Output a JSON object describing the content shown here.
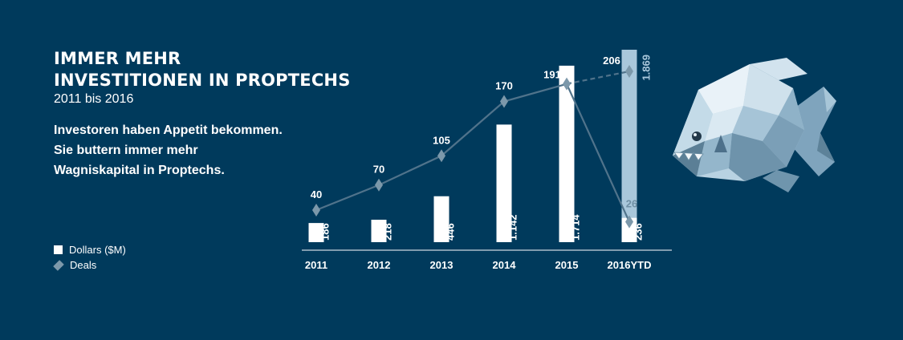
{
  "header": {
    "title_line1": "IMMER MEHR",
    "title_line2": "INVESTITIONEN IN PROPTECHS",
    "subtitle": "2011 bis 2016",
    "description": "Investoren haben Appetit bekommen. Sie buttern immer mehr Wagniskapital in Proptechs."
  },
  "legend": {
    "dollars": "Dollars ($M)",
    "deals": "Deals"
  },
  "chart_data": {
    "type": "bar",
    "categories": [
      "2011",
      "2012",
      "2013",
      "2014",
      "2015",
      "2016YTD"
    ],
    "series": [
      {
        "name": "Dollars ($M)",
        "type": "bar",
        "values": [
          186,
          218,
          446,
          1142,
          1714,
          236
        ],
        "labels": [
          "186",
          "218",
          "446",
          "1.142",
          "1.714",
          "236"
        ],
        "projected_value": 1869,
        "projected_label": "1.869"
      },
      {
        "name": "Deals",
        "type": "line",
        "values": [
          40,
          70,
          105,
          170,
          191,
          26
        ],
        "labels": [
          "40",
          "70",
          "105",
          "170",
          "191",
          "26"
        ],
        "projected_value": 206,
        "projected_label": "206"
      }
    ],
    "colors": {
      "bar": "#ffffff",
      "projected_bar": "#a9c7db",
      "line": "#50738b",
      "marker": "#7c98aa",
      "axis": "#ffffff",
      "background": "#003a5c"
    }
  }
}
